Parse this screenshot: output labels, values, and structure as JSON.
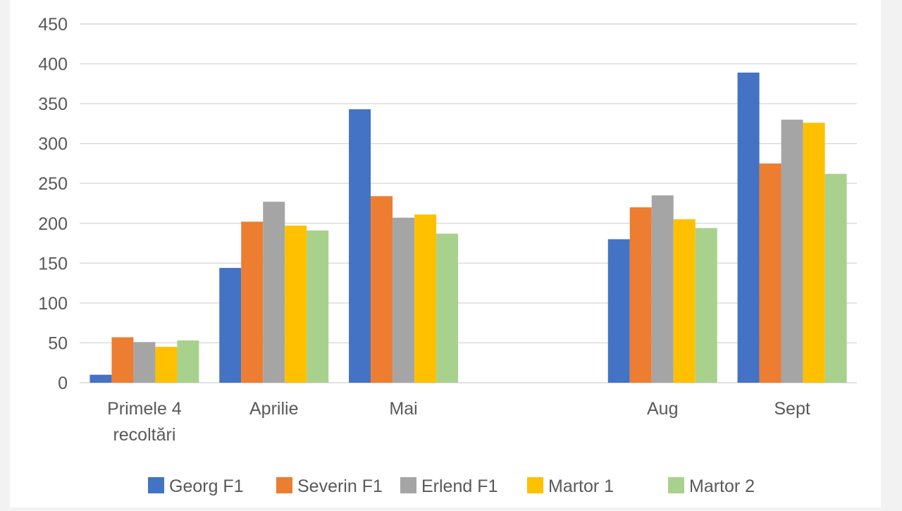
{
  "chart_data": {
    "type": "bar",
    "categories": [
      "Primele 4 recoltări",
      "Aprilie",
      "Mai",
      "",
      "Aug",
      "Sept"
    ],
    "category_lines": [
      [
        "Primele 4",
        "recoltări"
      ],
      [
        "Aprilie"
      ],
      [
        "Mai"
      ],
      [
        ""
      ],
      [
        "Aug"
      ],
      [
        "Sept"
      ]
    ],
    "series": [
      {
        "name": "Georg F1",
        "color": "#4472c4",
        "values": [
          10,
          144,
          343,
          null,
          180,
          389
        ]
      },
      {
        "name": "Severin F1",
        "color": "#ed7d31",
        "values": [
          57,
          202,
          234,
          null,
          220,
          275
        ]
      },
      {
        "name": "Erlend F1",
        "color": "#a5a5a5",
        "values": [
          51,
          227,
          207,
          null,
          235,
          330
        ]
      },
      {
        "name": "Martor 1",
        "color": "#ffc000",
        "values": [
          45,
          197,
          211,
          null,
          205,
          326
        ]
      },
      {
        "name": "Martor 2",
        "color": "#a9d18e",
        "values": [
          53,
          191,
          187,
          null,
          194,
          262
        ]
      }
    ],
    "y_ticks": [
      "0",
      "50",
      "100",
      "150",
      "200",
      "250",
      "300",
      "350",
      "400",
      "450"
    ],
    "ylim": [
      0,
      450
    ],
    "grid": true,
    "legend_position": "bottom",
    "title": "",
    "xlabel": "",
    "ylabel": ""
  }
}
